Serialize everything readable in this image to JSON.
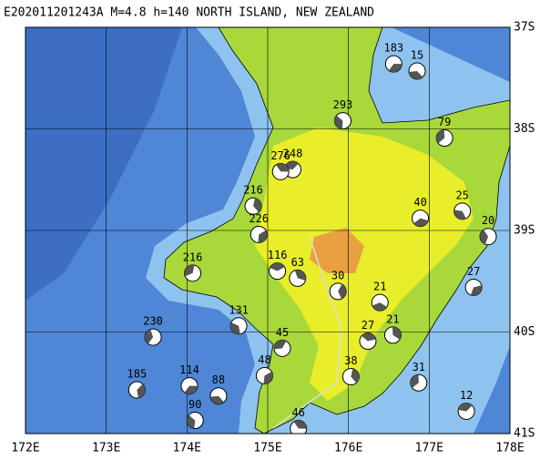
{
  "chart_data": {
    "type": "focal-map",
    "title": "E202011201243A  M=4.8 h=140 NORTH ISLAND, NEW ZEALAND",
    "xlim": [
      172,
      178
    ],
    "ylim": [
      37,
      41
    ],
    "xticks": [
      {
        "value": 172,
        "label": "172E"
      },
      {
        "value": 173,
        "label": "173E"
      },
      {
        "value": 174,
        "label": "174E"
      },
      {
        "value": 175,
        "label": "175E"
      },
      {
        "value": 176,
        "label": "176E"
      },
      {
        "value": 177,
        "label": "177E"
      },
      {
        "value": 178,
        "label": "178E"
      }
    ],
    "yticks": [
      {
        "value": 37,
        "label": "37S"
      },
      {
        "value": 38,
        "label": "38S"
      },
      {
        "value": 39,
        "label": "39S"
      },
      {
        "value": 40,
        "label": "40S"
      },
      {
        "value": 41,
        "label": "41S"
      }
    ],
    "grid": true,
    "events": [
      {
        "label": "183",
        "lon": 176.56,
        "lat": 37.36
      },
      {
        "label": "15",
        "lon": 176.85,
        "lat": 37.43
      },
      {
        "label": "293",
        "lon": 175.93,
        "lat": 37.92
      },
      {
        "label": "79",
        "lon": 177.19,
        "lat": 38.09
      },
      {
        "label": "248",
        "lon": 175.31,
        "lat": 38.4
      },
      {
        "label": "276",
        "lon": 175.16,
        "lat": 38.42
      },
      {
        "label": "216",
        "lon": 174.82,
        "lat": 38.76
      },
      {
        "label": "226",
        "lon": 174.89,
        "lat": 39.04
      },
      {
        "label": "40",
        "lon": 176.89,
        "lat": 38.88
      },
      {
        "label": "25",
        "lon": 177.41,
        "lat": 38.81
      },
      {
        "label": "20",
        "lon": 177.73,
        "lat": 39.06
      },
      {
        "label": "216",
        "lon": 174.07,
        "lat": 39.42
      },
      {
        "label": "116",
        "lon": 175.12,
        "lat": 39.4
      },
      {
        "label": "63",
        "lon": 175.37,
        "lat": 39.47
      },
      {
        "label": "30",
        "lon": 175.87,
        "lat": 39.6
      },
      {
        "label": "27",
        "lon": 177.55,
        "lat": 39.56
      },
      {
        "label": "21",
        "lon": 176.39,
        "lat": 39.71
      },
      {
        "label": "131",
        "lon": 174.64,
        "lat": 39.94
      },
      {
        "label": "230",
        "lon": 173.58,
        "lat": 40.05
      },
      {
        "label": "45",
        "lon": 175.18,
        "lat": 40.16
      },
      {
        "label": "27",
        "lon": 176.24,
        "lat": 40.09
      },
      {
        "label": "21",
        "lon": 176.55,
        "lat": 40.03
      },
      {
        "label": "185",
        "lon": 173.38,
        "lat": 40.57
      },
      {
        "label": "114",
        "lon": 174.03,
        "lat": 40.53
      },
      {
        "label": "88",
        "lon": 174.39,
        "lat": 40.63
      },
      {
        "label": "90",
        "lon": 174.1,
        "lat": 40.87
      },
      {
        "label": "31",
        "lon": 176.87,
        "lat": 40.5
      },
      {
        "label": "12",
        "lon": 177.46,
        "lat": 40.78
      },
      {
        "label": "46",
        "lon": 175.38,
        "lat": 40.95
      },
      {
        "label": "38",
        "lon": 176.03,
        "lat": 40.44
      },
      {
        "label": "48",
        "lon": 174.96,
        "lat": 40.43
      }
    ]
  }
}
